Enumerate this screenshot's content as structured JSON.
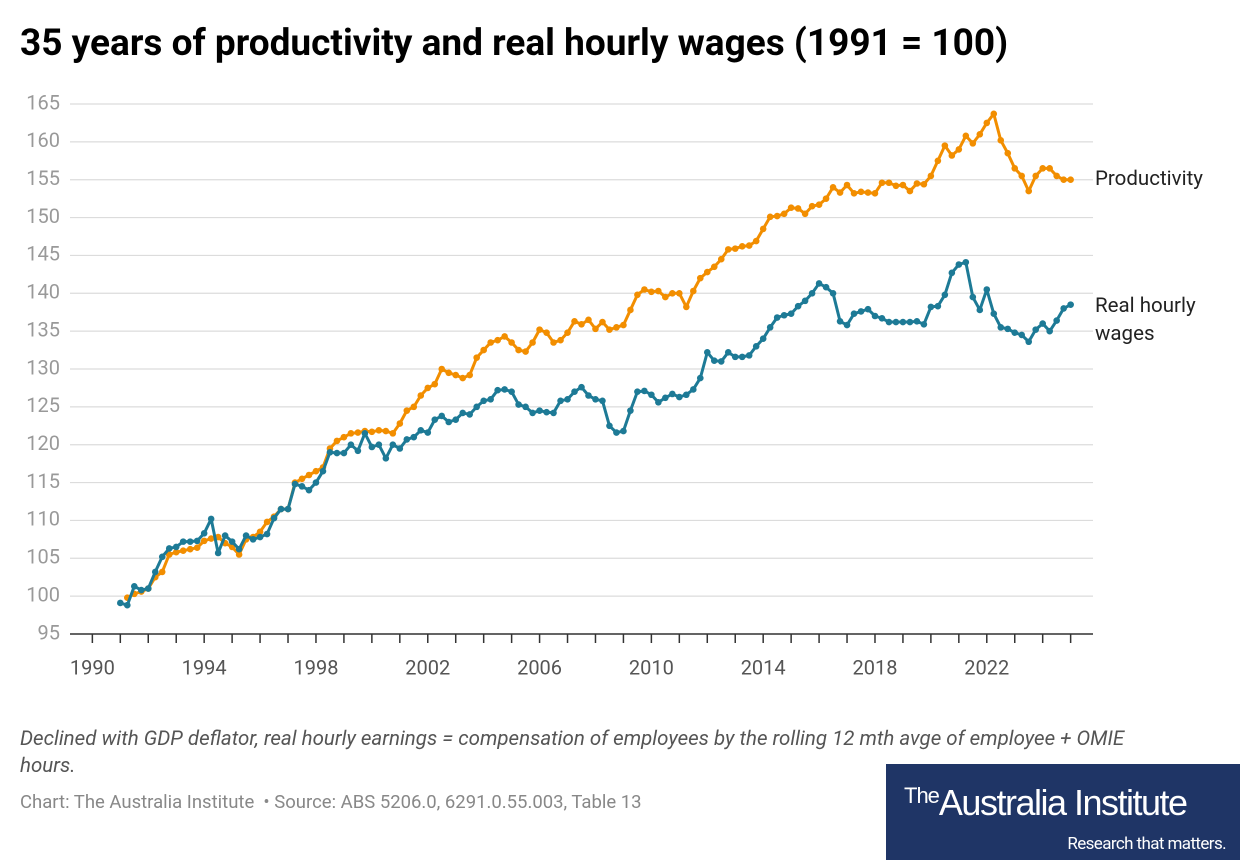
{
  "chart_data": {
    "type": "line",
    "title": "35 years of productivity and real hourly wages (1991 = 100)",
    "note": "Declined with GDP deflator, real hourly earnings = compensation of employees by the rolling 12 mth avge of employee + OMIE hours.",
    "source": "Chart: The Australia Institute  • Source: ABS 5206.0, 6291.0.55.003, Table 13",
    "logo": {
      "the": "The",
      "name": "Australia Institute",
      "tagline": "Research that matters."
    },
    "xlim": [
      1989.2,
      2025.8
    ],
    "xticks": [
      1990,
      1994,
      1998,
      2002,
      2006,
      2010,
      2014,
      2018,
      2022
    ],
    "xminorticks": [
      1991,
      1992,
      1993,
      1995,
      1996,
      1997,
      1999,
      2000,
      2001,
      2003,
      2004,
      2005,
      2007,
      2008,
      2009,
      2011,
      2012,
      2013,
      2015,
      2016,
      2017,
      2019,
      2020,
      2021,
      2023,
      2024,
      2025
    ],
    "ylim": [
      95,
      165
    ],
    "yticks": [
      95,
      100,
      105,
      110,
      115,
      120,
      125,
      130,
      135,
      140,
      145,
      150,
      155,
      160,
      165
    ],
    "grid": true,
    "x": [
      1991,
      1991.25,
      1991.5,
      1991.75,
      1992,
      1992.25,
      1992.5,
      1992.75,
      1993,
      1993.25,
      1993.5,
      1993.75,
      1994,
      1994.25,
      1994.5,
      1994.75,
      1995,
      1995.25,
      1995.5,
      1995.75,
      1996,
      1996.25,
      1996.5,
      1996.75,
      1997,
      1997.25,
      1997.5,
      1997.75,
      1998,
      1998.25,
      1998.5,
      1998.75,
      1999,
      1999.25,
      1999.5,
      1999.75,
      2000,
      2000.25,
      2000.5,
      2000.75,
      2001,
      2001.25,
      2001.5,
      2001.75,
      2002,
      2002.25,
      2002.5,
      2002.75,
      2003,
      2003.25,
      2003.5,
      2003.75,
      2004,
      2004.25,
      2004.5,
      2004.75,
      2005,
      2005.25,
      2005.5,
      2005.75,
      2006,
      2006.25,
      2006.5,
      2006.75,
      2007,
      2007.25,
      2007.5,
      2007.75,
      2008,
      2008.25,
      2008.5,
      2008.75,
      2009,
      2009.25,
      2009.5,
      2009.75,
      2010,
      2010.25,
      2010.5,
      2010.75,
      2011,
      2011.25,
      2011.5,
      2011.75,
      2012,
      2012.25,
      2012.5,
      2012.75,
      2013,
      2013.25,
      2013.5,
      2013.75,
      2014,
      2014.25,
      2014.5,
      2014.75,
      2015,
      2015.25,
      2015.5,
      2015.75,
      2016,
      2016.25,
      2016.5,
      2016.75,
      2017,
      2017.25,
      2017.5,
      2017.75,
      2018,
      2018.25,
      2018.5,
      2018.75,
      2019,
      2019.25,
      2019.5,
      2019.75,
      2020,
      2020.25,
      2020.5,
      2020.75,
      2021,
      2021.25,
      2021.5,
      2021.75,
      2022,
      2022.25,
      2022.5,
      2022.75,
      2023,
      2023.25,
      2023.5,
      2023.75,
      2024,
      2024.25,
      2024.5,
      2024.75,
      2025
    ],
    "series": [
      {
        "name": "Productivity",
        "color": "#f28e00",
        "values": [
          null,
          99.8,
          100.3,
          100.6,
          101.0,
          102.5,
          103.2,
          105.5,
          105.8,
          106.0,
          106.2,
          106.4,
          107.3,
          107.6,
          107.8,
          107.0,
          106.5,
          105.5,
          107.5,
          107.8,
          108.5,
          109.8,
          110.5,
          111.5,
          111.5,
          115.0,
          115.5,
          116.0,
          116.5,
          117.0,
          119.5,
          120.5,
          121.0,
          121.5,
          121.6,
          121.8,
          121.7,
          121.9,
          121.8,
          121.5,
          122.8,
          124.5,
          125.0,
          126.5,
          127.5,
          128.0,
          130.0,
          129.5,
          129.2,
          128.8,
          129.2,
          131.5,
          132.5,
          133.5,
          133.8,
          134.3,
          133.5,
          132.5,
          132.3,
          133.5,
          135.2,
          134.8,
          133.5,
          133.8,
          134.8,
          136.3,
          135.9,
          136.5,
          135.3,
          136.2,
          135.2,
          135.5,
          135.8,
          137.8,
          139.8,
          140.5,
          140.2,
          140.3,
          139.5,
          140.0,
          140.0,
          138.2,
          140.3,
          142.0,
          142.8,
          143.5,
          144.5,
          145.8,
          145.9,
          146.2,
          146.3,
          146.9,
          148.5,
          150.1,
          150.2,
          150.5,
          151.3,
          151.2,
          150.5,
          151.5,
          151.7,
          152.5,
          154.0,
          153.3,
          154.3,
          153.2,
          153.4,
          153.3,
          153.2,
          154.6,
          154.6,
          154.2,
          154.3,
          153.5,
          154.5,
          154.4,
          155.5,
          157.5,
          159.5,
          158.2,
          159.0,
          160.8,
          159.8,
          161.0,
          162.5,
          163.7,
          160.2,
          158.5,
          156.5,
          155.5,
          153.5,
          155.5,
          156.5,
          156.5,
          155.5,
          155.0,
          155.0
        ]
      },
      {
        "name": "Real hourly wages",
        "color": "#1d7a96",
        "values": [
          99.1,
          98.8,
          101.3,
          100.8,
          101.0,
          103.2,
          105.2,
          106.3,
          106.5,
          107.2,
          107.2,
          107.3,
          108.3,
          110.2,
          105.7,
          108.0,
          107.2,
          106.2,
          108.0,
          107.5,
          107.8,
          108.2,
          110.3,
          111.5,
          111.5,
          114.8,
          114.5,
          114.0,
          115.0,
          116.5,
          119.0,
          118.9,
          118.9,
          120.0,
          119.2,
          121.5,
          119.7,
          120.0,
          118.2,
          120.0,
          119.5,
          120.7,
          121.0,
          121.9,
          121.6,
          123.3,
          123.8,
          123.0,
          123.3,
          124.2,
          124.0,
          125.0,
          125.8,
          126.0,
          127.2,
          127.3,
          127.0,
          125.3,
          125.0,
          124.2,
          124.5,
          124.3,
          124.2,
          125.8,
          126.0,
          127.0,
          127.6,
          126.5,
          126.0,
          125.8,
          122.5,
          121.6,
          121.8,
          124.5,
          127.0,
          127.1,
          126.6,
          125.6,
          126.2,
          126.7,
          126.3,
          126.6,
          127.3,
          128.8,
          132.2,
          131.1,
          131.0,
          132.2,
          131.6,
          131.6,
          131.8,
          133.0,
          134.0,
          135.5,
          136.8,
          137.1,
          137.3,
          138.3,
          139.0,
          140.0,
          141.3,
          140.8,
          140.0,
          136.3,
          135.8,
          137.3,
          137.6,
          137.9,
          137.0,
          136.7,
          136.2,
          136.2,
          136.2,
          136.2,
          136.3,
          135.9,
          138.2,
          138.3,
          139.8,
          142.7,
          143.8,
          144.1,
          139.5,
          137.8,
          140.5,
          137.3,
          135.5,
          135.3,
          134.8,
          134.5,
          133.6,
          135.2,
          136.0,
          135.0,
          136.4,
          138.0,
          138.5
        ]
      }
    ]
  }
}
